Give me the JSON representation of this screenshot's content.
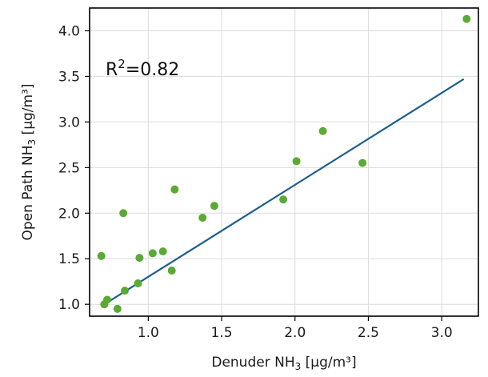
{
  "chart_data": {
    "type": "scatter",
    "xlabel_main": "Denuder NH",
    "xlabel_sub": "3",
    "xlabel_unit": " [µg/m³]",
    "ylabel_main": "Open Path NH",
    "ylabel_sub": "3",
    "ylabel_unit": " [µg/m³]",
    "xlim": [
      0.6,
      3.25
    ],
    "ylim": [
      0.87,
      4.25
    ],
    "xticks": [
      1.0,
      1.5,
      2.0,
      2.5,
      3.0
    ],
    "xtick_labels": [
      "1.0",
      "1.5",
      "2.0",
      "2.5",
      "3.0"
    ],
    "yticks": [
      1.0,
      1.5,
      2.0,
      2.5,
      3.0,
      3.5,
      4.0
    ],
    "ytick_labels": [
      "1.0",
      "1.5",
      "2.0",
      "2.5",
      "3.0",
      "3.5",
      "4.0"
    ],
    "grid": true,
    "annotation": {
      "prefix": "R",
      "sup": "2",
      "suffix": "=0.82"
    },
    "points": [
      {
        "x": 0.68,
        "y": 1.53
      },
      {
        "x": 0.7,
        "y": 1.0
      },
      {
        "x": 0.72,
        "y": 1.05
      },
      {
        "x": 0.79,
        "y": 0.95
      },
      {
        "x": 0.83,
        "y": 2.0
      },
      {
        "x": 0.84,
        "y": 1.15
      },
      {
        "x": 0.93,
        "y": 1.23
      },
      {
        "x": 0.94,
        "y": 1.51
      },
      {
        "x": 1.03,
        "y": 1.56
      },
      {
        "x": 1.1,
        "y": 1.58
      },
      {
        "x": 1.16,
        "y": 1.37
      },
      {
        "x": 1.18,
        "y": 2.26
      },
      {
        "x": 1.37,
        "y": 1.95
      },
      {
        "x": 1.45,
        "y": 2.08
      },
      {
        "x": 1.92,
        "y": 2.15
      },
      {
        "x": 2.01,
        "y": 2.57
      },
      {
        "x": 2.19,
        "y": 2.9
      },
      {
        "x": 2.46,
        "y": 2.55
      },
      {
        "x": 3.17,
        "y": 4.13
      }
    ],
    "fit_line": {
      "x": [
        0.72,
        3.15
      ],
      "y": [
        1.02,
        3.47
      ]
    },
    "colors": {
      "points": "#5aaa33",
      "fit_line": "#1b5f8c",
      "grid": "#dcdcdc",
      "frame": "#000000"
    }
  }
}
